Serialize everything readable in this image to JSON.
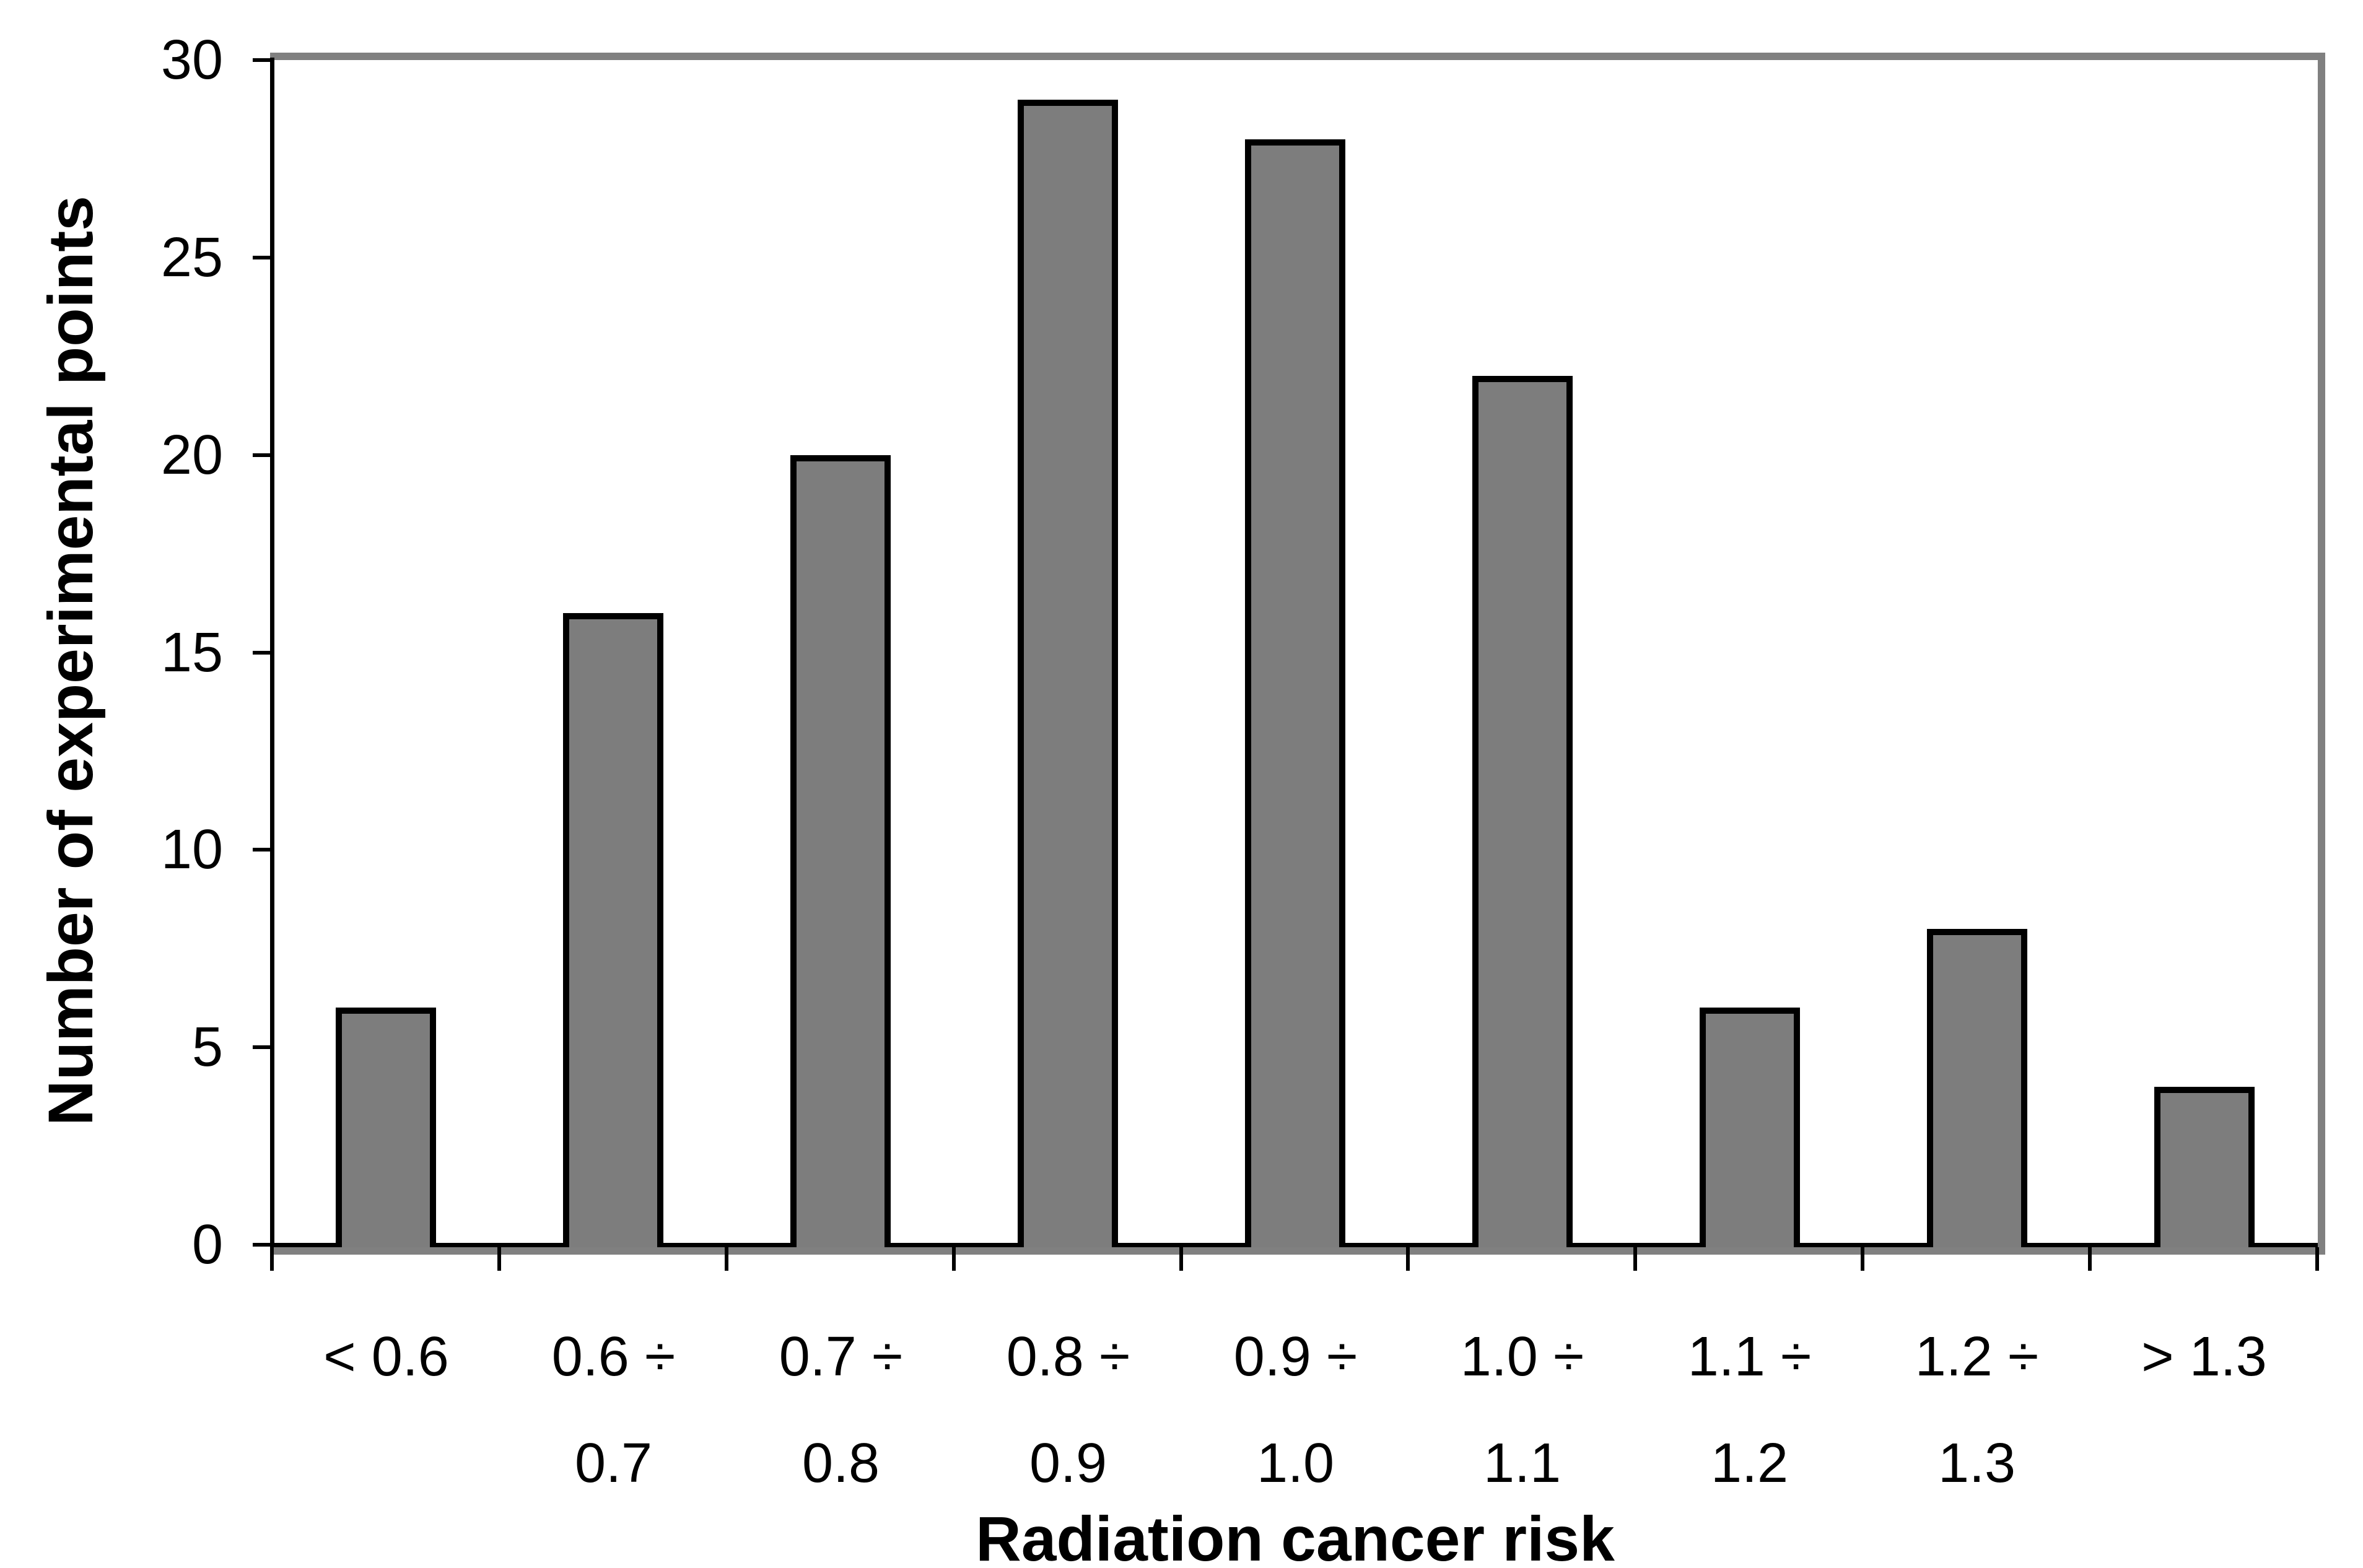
{
  "chart_data": {
    "type": "bar",
    "title": "",
    "xlabel": "Radiation cancer risk",
    "ylabel": "Number of experimental points",
    "categories": [
      "< 0.6",
      "0.6 ÷ 0.7",
      "0.7 ÷ 0.8",
      "0.8 ÷ 0.9",
      "0.9 ÷ 1.0",
      "1.0 ÷ 1.1",
      "1.1 ÷ 1.2",
      "1.2 ÷ 1.3",
      "> 1.3"
    ],
    "tick_labels_two_line": [
      [
        "< 0.6",
        ""
      ],
      [
        "0.6 ÷",
        "0.7"
      ],
      [
        "0.7 ÷",
        "0.8"
      ],
      [
        "0.8 ÷",
        "0.9"
      ],
      [
        "0.9 ÷",
        "1.0"
      ],
      [
        "1.0 ÷",
        "1.1"
      ],
      [
        "1.1 ÷",
        "1.2"
      ],
      [
        "1.2 ÷",
        "1.3"
      ],
      [
        "> 1.3",
        ""
      ]
    ],
    "values": [
      6,
      16,
      20,
      29,
      28,
      22,
      6,
      8,
      4
    ],
    "yticks": [
      "0",
      "5",
      "10",
      "15",
      "20",
      "25",
      "30"
    ],
    "ylim": [
      0,
      30
    ],
    "grid": false,
    "legend": null,
    "colors": {
      "bar_fill": "#7d7d7d",
      "bar_border": "#000000",
      "axis": "#000000",
      "shadow": "#808080",
      "text": "#000000",
      "background": "#ffffff"
    }
  }
}
